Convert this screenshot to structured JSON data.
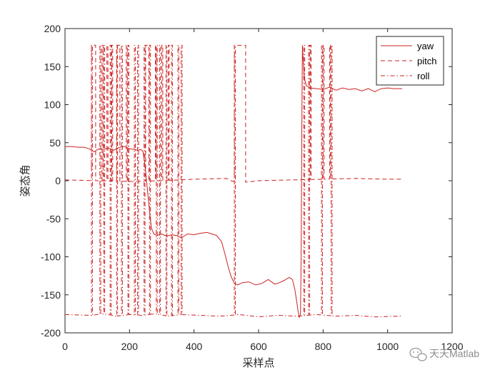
{
  "chart_data": {
    "type": "line",
    "title": "",
    "xlabel": "采样点",
    "ylabel": "姿态角",
    "xlim": [
      0,
      1200
    ],
    "ylim": [
      -200,
      200
    ],
    "xticks": [
      0,
      200,
      400,
      600,
      800,
      1000,
      1200
    ],
    "yticks": [
      -200,
      -150,
      -100,
      -50,
      0,
      50,
      100,
      150,
      200
    ],
    "xtick_labels": [
      "0",
      "200",
      "400",
      "600",
      "800",
      "1000",
      "1200"
    ],
    "ytick_labels": [
      "-200",
      "-150",
      "-100",
      "-50",
      "0",
      "50",
      "100",
      "150",
      "200"
    ],
    "grid": false,
    "legend_position": "top-right",
    "series": [
      {
        "name": "yaw",
        "color": "#cc2222",
        "dash": "solid",
        "x": [
          0,
          20,
          40,
          60,
          75,
          90,
          105,
          120,
          135,
          150,
          170,
          185,
          200,
          215,
          225,
          235,
          242,
          248,
          255,
          262,
          268,
          275,
          285,
          300,
          315,
          330,
          345,
          360,
          380,
          400,
          420,
          440,
          455,
          470,
          485,
          495,
          505,
          515,
          525,
          535,
          550,
          570,
          590,
          610,
          630,
          650,
          665,
          680,
          695,
          705,
          712,
          718,
          722,
          726,
          730,
          732,
          734,
          736,
          738,
          742,
          748,
          760,
          780,
          800,
          820,
          840,
          860,
          880,
          900,
          920,
          940,
          960,
          980,
          1000,
          1020,
          1045
        ],
        "y": [
          45,
          45,
          44,
          44,
          42,
          38,
          42,
          41,
          43,
          40,
          44,
          45,
          42,
          41,
          40,
          41,
          38,
          20,
          -10,
          -40,
          -62,
          -70,
          -72,
          -70,
          -73,
          -71,
          -72,
          -75,
          -70,
          -71,
          -69,
          -68,
          -70,
          -72,
          -80,
          -95,
          -112,
          -126,
          -135,
          -137,
          -134,
          -133,
          -137,
          -135,
          -130,
          -136,
          -134,
          -131,
          -127,
          -130,
          -142,
          -158,
          -170,
          -180,
          -175,
          -100,
          60,
          178,
          160,
          135,
          125,
          122,
          121,
          120,
          123,
          119,
          122,
          120,
          121,
          118,
          121,
          117,
          121,
          122,
          121,
          121
        ]
      },
      {
        "name": "pitch",
        "color": "#cc2222",
        "dash": "dashed",
        "flips": [
          [
            82,
            95
          ],
          [
            115,
            118
          ],
          [
            130,
            133
          ],
          [
            145,
            148
          ],
          [
            160,
            170
          ],
          [
            190,
            193
          ],
          [
            250,
            260
          ],
          [
            280,
            283
          ],
          [
            300,
            303
          ],
          [
            320,
            323
          ],
          [
            525,
            560
          ],
          [
            760,
            763
          ],
          [
            800,
            803
          ],
          [
            820,
            823
          ]
        ],
        "baseline_x": [
          0,
          100,
          200,
          300,
          400,
          500,
          520,
          540,
          560,
          600,
          700,
          800,
          900,
          1000,
          1045
        ],
        "baseline_y": [
          1,
          0,
          -1,
          0,
          2,
          3,
          -1,
          1,
          -2,
          0,
          1,
          2,
          3,
          2,
          2
        ]
      },
      {
        "name": "roll",
        "color": "#cc2222",
        "dash": "dashdot",
        "flips": [
          [
            82,
            85
          ],
          [
            108,
            111
          ],
          [
            120,
            123
          ],
          [
            140,
            143
          ],
          [
            160,
            163
          ],
          [
            175,
            178
          ],
          [
            195,
            198
          ],
          [
            215,
            218
          ],
          [
            225,
            228
          ],
          [
            245,
            248
          ],
          [
            262,
            265
          ],
          [
            283,
            286
          ],
          [
            293,
            296
          ],
          [
            313,
            316
          ],
          [
            330,
            333
          ],
          [
            350,
            353
          ],
          [
            360,
            363
          ],
          [
            525,
            528
          ],
          [
            740,
            743
          ],
          [
            755,
            758
          ],
          [
            795,
            798
          ],
          [
            825,
            828
          ]
        ],
        "baseline_x": [
          0,
          80,
          120,
          160,
          200,
          240,
          280,
          320,
          360,
          420,
          480,
          540,
          600,
          660,
          720,
          780,
          840,
          900,
          960,
          1045
        ],
        "baseline_y": [
          -176,
          -177,
          -175,
          -178,
          -176,
          -177,
          -175,
          -178,
          -176,
          -177,
          -178,
          -176,
          -179,
          -177,
          -178,
          -176,
          -178,
          -177,
          -179,
          -178
        ]
      }
    ]
  },
  "watermark": {
    "text": "天天Matlab",
    "icon": "wechat-icon"
  }
}
